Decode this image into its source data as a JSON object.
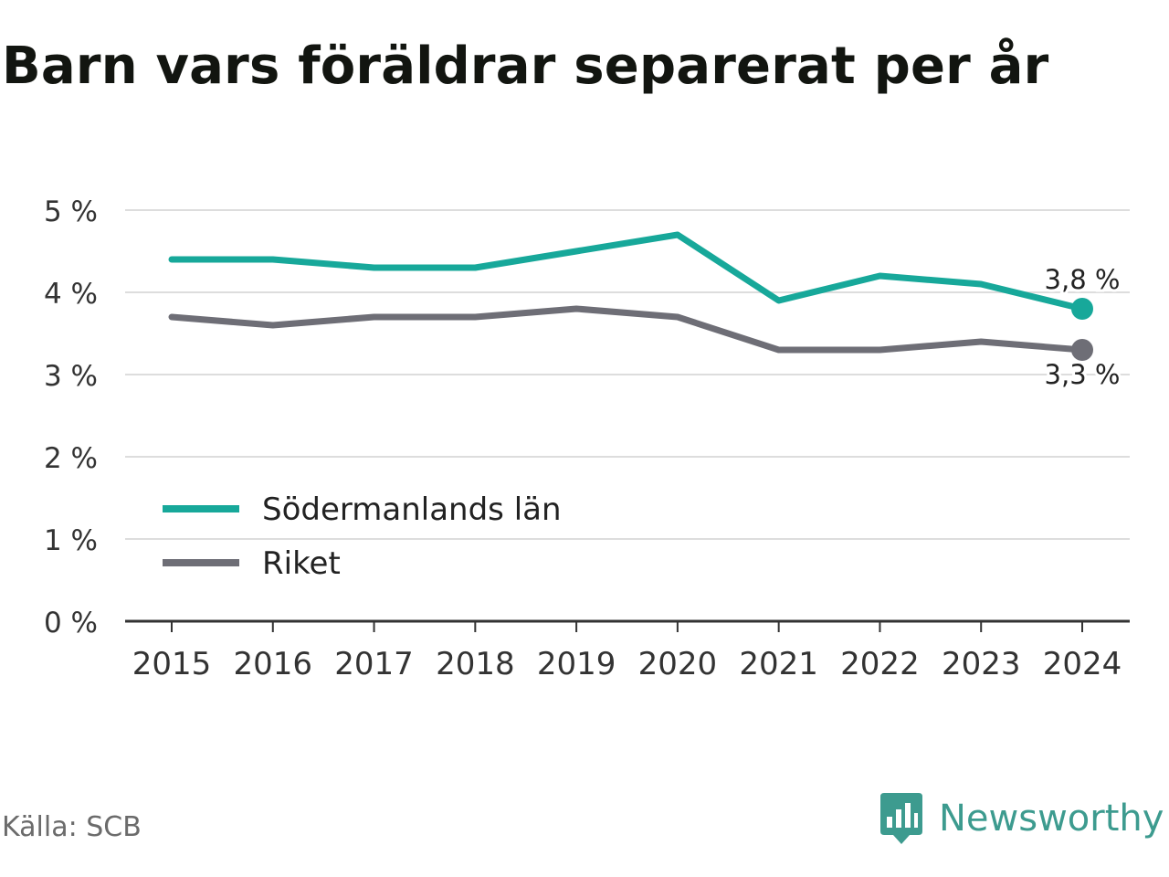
{
  "title": "Barn vars föräldrar separerat per år",
  "source": "Källa: SCB",
  "brand": {
    "name": "Newsworthy",
    "icon": "newsworthy-logo-icon",
    "color": "#3d9b8f"
  },
  "chart_data": {
    "type": "line",
    "title": "Barn vars föräldrar separerat per år",
    "x": [
      "2015",
      "2016",
      "2017",
      "2018",
      "2019",
      "2020",
      "2021",
      "2022",
      "2023",
      "2024"
    ],
    "series": [
      {
        "name": "Södermanlands län",
        "color": "#17a89a",
        "values": [
          4.4,
          4.4,
          4.3,
          4.3,
          4.5,
          4.7,
          3.9,
          4.2,
          4.1,
          3.8
        ],
        "end_label": "3,8 %"
      },
      {
        "name": "Riket",
        "color": "#6e6e76",
        "values": [
          3.7,
          3.6,
          3.7,
          3.7,
          3.8,
          3.7,
          3.3,
          3.3,
          3.4,
          3.3
        ],
        "end_label": "3,3 %"
      }
    ],
    "y_ticks": [
      {
        "value": 0,
        "label": "0 %"
      },
      {
        "value": 1,
        "label": "1 %"
      },
      {
        "value": 2,
        "label": "2 %"
      },
      {
        "value": 3,
        "label": "3 %"
      },
      {
        "value": 4,
        "label": "4 %"
      },
      {
        "value": 5,
        "label": "5 %"
      }
    ],
    "ylim": [
      0,
      5
    ],
    "grid": true,
    "legend_position": "bottom-left",
    "xlabel": "",
    "ylabel": ""
  }
}
